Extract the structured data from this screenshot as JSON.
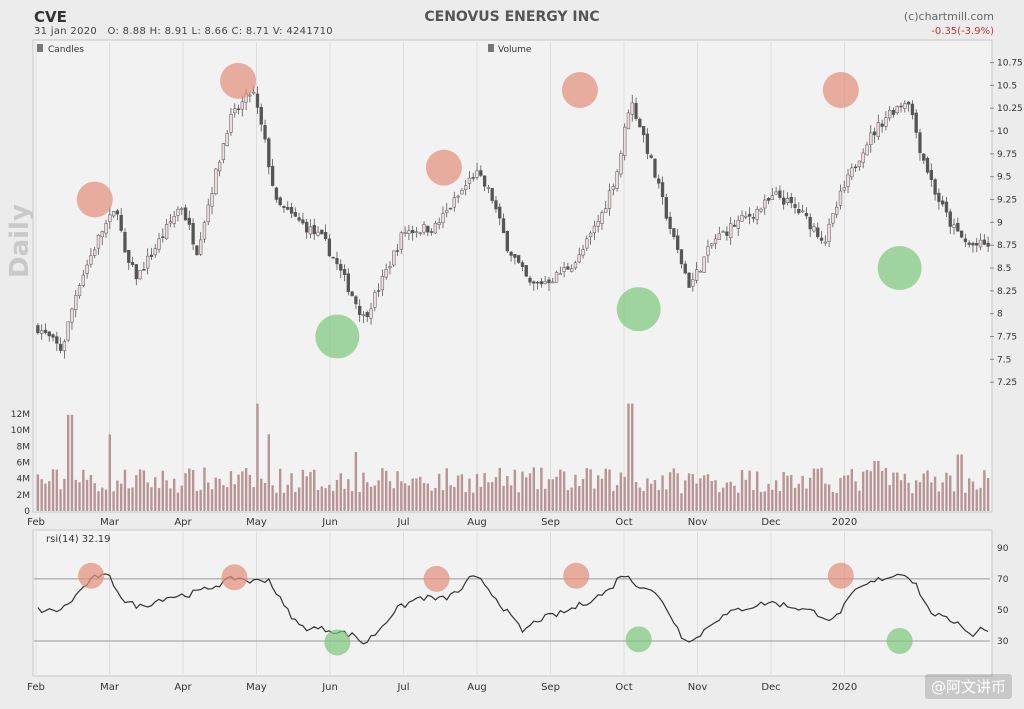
{
  "header": {
    "ticker": "CVE",
    "date": "31 jan 2020",
    "ohlcv": "O: 8.88  H: 8.91  L: 8.66  C: 8.71  V: 4241710",
    "title": "CENOVUS ENERGY INC",
    "credit": "(c)chartmill.com",
    "change": "-0.35(-3.9%)",
    "side_label": "Daily",
    "watermark": "@阿文讲币"
  },
  "colors": {
    "background": "#ececec",
    "panel": "#f2f2f2",
    "up_candle": "#f0dcdc",
    "down_candle": "#555555",
    "volume_bar": "#b89494",
    "rsi_line": "#333333",
    "peak_circle": "#e28f7a",
    "trough_circle": "#7cc87c"
  },
  "chart_data": [
    {
      "type": "candlestick",
      "legend": [
        "Candles",
        "Volume"
      ],
      "y_ticks": [
        7.25,
        7.5,
        7.75,
        8,
        8.25,
        8.5,
        8.75,
        9,
        9.25,
        9.5,
        9.75,
        10,
        10.25,
        10.5,
        10.75
      ],
      "ylim": [
        7.0,
        10.8
      ],
      "x_labels": [
        "Feb",
        "Mar",
        "Apr",
        "May",
        "Jun",
        "Jul",
        "Aug",
        "Sep",
        "Oct",
        "Nov",
        "Dec",
        "2020"
      ],
      "close_path_months": [
        [
          0,
          7.85
        ],
        [
          0.3,
          7.6
        ],
        [
          0.5,
          8.3
        ],
        [
          0.8,
          8.9
        ],
        [
          1.0,
          9.15
        ],
        [
          1.1,
          8.6
        ],
        [
          1.25,
          8.4
        ],
        [
          1.6,
          8.9
        ],
        [
          1.8,
          9.2
        ],
        [
          2.0,
          8.7
        ],
        [
          2.2,
          9.4
        ],
        [
          2.4,
          10.1
        ],
        [
          2.7,
          10.45
        ],
        [
          2.85,
          9.9
        ],
        [
          3.0,
          9.2
        ],
        [
          3.3,
          9.0
        ],
        [
          3.6,
          8.8
        ],
        [
          3.9,
          8.3
        ],
        [
          4.1,
          7.95
        ],
        [
          4.3,
          8.3
        ],
        [
          4.6,
          8.9
        ],
        [
          5.0,
          8.95
        ],
        [
          5.3,
          9.3
        ],
        [
          5.5,
          9.55
        ],
        [
          5.7,
          9.3
        ],
        [
          5.9,
          8.75
        ],
        [
          6.2,
          8.3
        ],
        [
          6.5,
          8.4
        ],
        [
          6.8,
          8.6
        ],
        [
          7.1,
          9.1
        ],
        [
          7.3,
          9.6
        ],
        [
          7.45,
          10.35
        ],
        [
          7.6,
          10.0
        ],
        [
          7.8,
          9.4
        ],
        [
          8.0,
          8.8
        ],
        [
          8.2,
          8.3
        ],
        [
          8.5,
          8.8
        ],
        [
          8.8,
          9.0
        ],
        [
          9.0,
          9.1
        ],
        [
          9.3,
          9.3
        ],
        [
          9.6,
          9.1
        ],
        [
          9.9,
          8.8
        ],
        [
          10.1,
          9.3
        ],
        [
          10.4,
          9.85
        ],
        [
          10.7,
          10.2
        ],
        [
          10.95,
          10.35
        ],
        [
          11.1,
          9.8
        ],
        [
          11.3,
          9.3
        ],
        [
          11.5,
          8.95
        ],
        [
          11.7,
          8.75
        ]
      ],
      "volume_axis": [
        "0",
        "2M",
        "4M",
        "6M",
        "8M",
        "10M",
        "12M"
      ],
      "volume_ylim": [
        0,
        13000000
      ],
      "volume_spikes_millions": [
        [
          0.4,
          11.9
        ],
        [
          0.9,
          9.5
        ],
        [
          2.75,
          13.3
        ],
        [
          2.9,
          9.5
        ],
        [
          4.0,
          7.3
        ],
        [
          7.45,
          13.3
        ],
        [
          10.55,
          6.2
        ],
        [
          11.6,
          7.0
        ]
      ],
      "peaks": [
        [
          0.8,
          9.25
        ],
        [
          2.75,
          10.55
        ],
        [
          5.55,
          9.6
        ],
        [
          7.4,
          10.45
        ],
        [
          10.95,
          10.45
        ]
      ],
      "troughs": [
        [
          4.1,
          7.75
        ],
        [
          8.2,
          8.05
        ],
        [
          11.75,
          8.5
        ]
      ]
    },
    {
      "type": "line",
      "label": "rsi(14) 32.19",
      "y_ticks": [
        30,
        50,
        70,
        90
      ],
      "ylim": [
        10,
        95
      ],
      "reference_lines": [
        30,
        70
      ],
      "x_labels": [
        "Feb",
        "Mar",
        "Apr",
        "May",
        "Jun",
        "Jul",
        "Aug",
        "Sep",
        "Oct",
        "Nov",
        "Dec",
        "2020"
      ],
      "rsi_path_months": [
        [
          0,
          50
        ],
        [
          0.2,
          49
        ],
        [
          0.35,
          52
        ],
        [
          0.6,
          66
        ],
        [
          0.75,
          72
        ],
        [
          0.9,
          71
        ],
        [
          1.1,
          55
        ],
        [
          1.3,
          52
        ],
        [
          1.6,
          58
        ],
        [
          1.9,
          60
        ],
        [
          2.1,
          63
        ],
        [
          2.5,
          71
        ],
        [
          2.7,
          68
        ],
        [
          2.9,
          70
        ],
        [
          3.1,
          52
        ],
        [
          3.3,
          39
        ],
        [
          3.7,
          37
        ],
        [
          4.0,
          33
        ],
        [
          4.1,
          28
        ],
        [
          4.25,
          35
        ],
        [
          4.5,
          50
        ],
        [
          4.8,
          58
        ],
        [
          5.1,
          57
        ],
        [
          5.3,
          62
        ],
        [
          5.45,
          71
        ],
        [
          5.6,
          68
        ],
        [
          5.8,
          55
        ],
        [
          6.1,
          36
        ],
        [
          6.3,
          44
        ],
        [
          6.6,
          48
        ],
        [
          6.9,
          55
        ],
        [
          7.2,
          63
        ],
        [
          7.35,
          74
        ],
        [
          7.5,
          67
        ],
        [
          7.7,
          64
        ],
        [
          7.9,
          52
        ],
        [
          8.1,
          33
        ],
        [
          8.25,
          30
        ],
        [
          8.5,
          43
        ],
        [
          8.8,
          50
        ],
        [
          9.2,
          55
        ],
        [
          9.5,
          52
        ],
        [
          9.8,
          48
        ],
        [
          10.0,
          43
        ],
        [
          10.3,
          63
        ],
        [
          10.6,
          70
        ],
        [
          10.9,
          74
        ],
        [
          11.05,
          66
        ],
        [
          11.2,
          50
        ],
        [
          11.4,
          44
        ],
        [
          11.6,
          42
        ],
        [
          11.75,
          32
        ],
        [
          11.85,
          40
        ],
        [
          12.0,
          34
        ]
      ],
      "peaks": [
        [
          0.75,
          72
        ],
        [
          2.7,
          71
        ],
        [
          5.45,
          70
        ],
        [
          7.35,
          72
        ],
        [
          10.95,
          72
        ]
      ],
      "troughs": [
        [
          4.1,
          29
        ],
        [
          8.2,
          31
        ],
        [
          11.75,
          30
        ]
      ]
    }
  ]
}
